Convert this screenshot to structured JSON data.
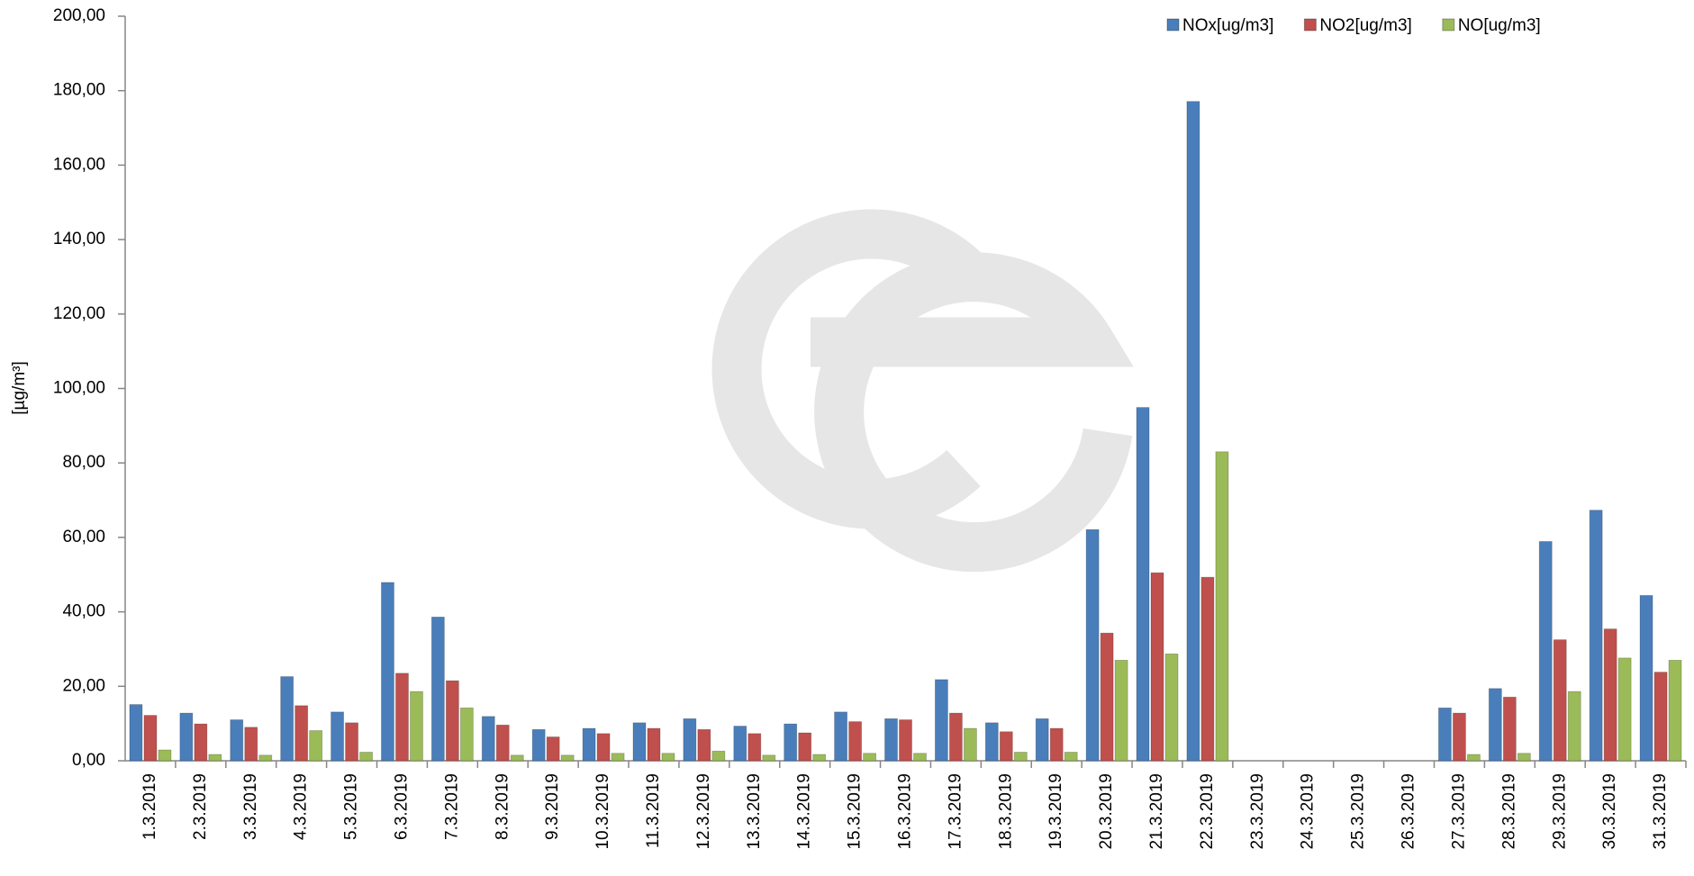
{
  "chart_data": {
    "type": "bar",
    "y_label": "[µg/m³]",
    "categories": [
      "1.3.2019",
      "2.3.2019",
      "3.3.2019",
      "4.3.2019",
      "5.3.2019",
      "6.3.2019",
      "7.3.2019",
      "8.3.2019",
      "9.3.2019",
      "10.3.2019",
      "11.3.2019",
      "12.3.2019",
      "13.3.2019",
      "14.3.2019",
      "15.3.2019",
      "16.3.2019",
      "17.3.2019",
      "18.3.2019",
      "19.3.2019",
      "20.3.2019",
      "21.3.2019",
      "22.3.2019",
      "23.3.2019",
      "24.3.2019",
      "25.3.2019",
      "26.3.2019",
      "27.3.2019",
      "28.3.2019",
      "29.3.2019",
      "30.3.2019",
      "31.3.2019"
    ],
    "series": [
      {
        "name": "NOx[ug/m3]",
        "color": "#4a7ebb",
        "values": [
          15.1,
          12.8,
          11.0,
          22.6,
          13.1,
          47.9,
          38.6,
          11.9,
          8.4,
          8.7,
          10.2,
          11.3,
          9.3,
          9.9,
          13.1,
          11.3,
          21.8,
          10.2,
          11.3,
          62.1,
          94.9,
          177.1,
          null,
          null,
          null,
          null,
          14.2,
          19.4,
          58.9,
          67.3,
          44.4
        ]
      },
      {
        "name": "NO2[ug/m3]",
        "color": "#c0504d",
        "values": [
          12.2,
          9.9,
          9.0,
          14.8,
          10.2,
          23.5,
          21.5,
          9.6,
          6.4,
          7.3,
          8.7,
          8.4,
          7.3,
          7.5,
          10.5,
          11.0,
          12.8,
          7.8,
          8.7,
          34.3,
          50.5,
          49.3,
          null,
          null,
          null,
          null,
          12.8,
          17.1,
          32.5,
          35.4,
          23.8
        ]
      },
      {
        "name": "NO[ug/m3]",
        "color": "#9bbb59",
        "values": [
          2.9,
          1.7,
          1.5,
          8.1,
          2.3,
          18.6,
          14.2,
          1.5,
          1.5,
          2.0,
          2.0,
          2.6,
          1.5,
          1.7,
          2.0,
          2.0,
          8.7,
          2.3,
          2.3,
          27.0,
          28.7,
          83.0,
          null,
          null,
          null,
          null,
          1.7,
          2.0,
          18.6,
          27.6,
          27.0
        ]
      }
    ],
    "ylim": [
      0,
      200
    ],
    "yticks": [
      {
        "value": 0,
        "label": "0,00"
      },
      {
        "value": 20,
        "label": "20,00"
      },
      {
        "value": 40,
        "label": "40,00"
      },
      {
        "value": 60,
        "label": "60,00"
      },
      {
        "value": 80,
        "label": "80,00"
      },
      {
        "value": 100,
        "label": "100,00"
      },
      {
        "value": 120,
        "label": "120,00"
      },
      {
        "value": 140,
        "label": "140,00"
      },
      {
        "value": 160,
        "label": "160,00"
      },
      {
        "value": 180,
        "label": "180,00"
      },
      {
        "value": 200,
        "label": "200,00"
      }
    ],
    "grid": false,
    "legend": "top-right"
  }
}
